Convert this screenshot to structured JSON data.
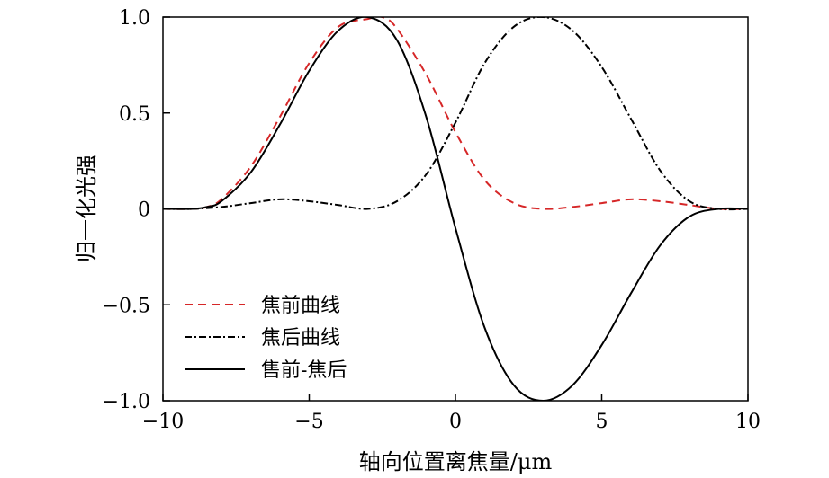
{
  "chart_data": {
    "type": "line",
    "xlabel": "轴向位置离焦量/μm",
    "ylabel": "归一化光强",
    "xlim": [
      -10,
      10
    ],
    "ylim": [
      -1.0,
      1.0
    ],
    "x_ticks": [
      -10,
      -5,
      0,
      5,
      10
    ],
    "x_tick_labels": [
      "−10",
      "−5",
      "0",
      "5",
      "10"
    ],
    "y_ticks": [
      -1.0,
      -0.5,
      0,
      0.5,
      1.0
    ],
    "y_tick_labels": [
      "−1.0",
      "−0.5",
      "0",
      "0.5",
      "1.0"
    ],
    "grid": false,
    "legend_position": "bottom-left",
    "series": [
      {
        "name": "焦前曲线",
        "color": "#d62728",
        "dash": "dashed",
        "x": [
          -10,
          -9,
          -8.5,
          -8,
          -7,
          -6,
          -5,
          -4,
          -3,
          -2.5,
          -2,
          -1,
          0,
          1,
          2,
          3,
          4,
          5,
          6,
          7,
          8,
          9,
          10
        ],
        "y": [
          0.0,
          0.0,
          0.01,
          0.05,
          0.22,
          0.48,
          0.76,
          0.95,
          0.99,
          1.0,
          0.94,
          0.7,
          0.4,
          0.15,
          0.03,
          0.0,
          0.01,
          0.03,
          0.05,
          0.04,
          0.02,
          0.0,
          0.0
        ]
      },
      {
        "name": "焦后曲线",
        "color": "#000000",
        "dash": "dashdot",
        "x": [
          -10,
          -9,
          -8,
          -7,
          -6,
          -5,
          -4,
          -3,
          -2,
          -1,
          0,
          1,
          2,
          3,
          4,
          5,
          6,
          7,
          8,
          9,
          10
        ],
        "y": [
          0.0,
          0.0,
          0.01,
          0.03,
          0.05,
          0.04,
          0.02,
          0.0,
          0.04,
          0.18,
          0.45,
          0.76,
          0.95,
          1.0,
          0.93,
          0.74,
          0.47,
          0.2,
          0.04,
          0.0,
          0.0
        ]
      },
      {
        "name": "售前-焦后",
        "color": "#000000",
        "dash": "solid",
        "x": [
          -10,
          -9,
          -8.5,
          -8,
          -7,
          -6,
          -5,
          -4,
          -3,
          -2,
          -1,
          0,
          1,
          2,
          3,
          4,
          5,
          6,
          7,
          8,
          9,
          10
        ],
        "y": [
          0.0,
          0.0,
          0.01,
          0.04,
          0.19,
          0.44,
          0.72,
          0.93,
          1.0,
          0.88,
          0.48,
          -0.1,
          -0.62,
          -0.92,
          -1.0,
          -0.92,
          -0.71,
          -0.44,
          -0.19,
          -0.04,
          0.0,
          0.0
        ]
      }
    ]
  }
}
